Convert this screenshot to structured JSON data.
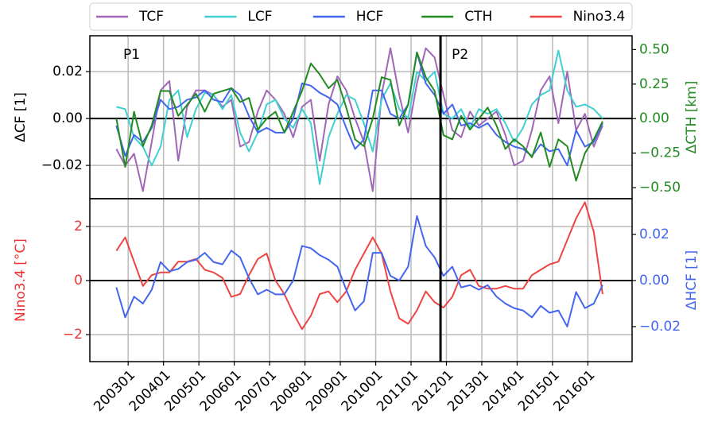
{
  "chart_data": [
    {
      "type": "line",
      "ylabel": "ΔCF [1]",
      "y2label": "ΔCTH [km]",
      "ycolor": "#000000",
      "y2color": "#228b22",
      "annotations": [
        "P1",
        "P2"
      ],
      "vline": "201111",
      "grid": true,
      "legend": "top",
      "xlim": [
        "200112",
        "201704"
      ],
      "xticks": [
        "200301",
        "200401",
        "200501",
        "200601",
        "200701",
        "200801",
        "200901",
        "201001",
        "201101",
        "201201",
        "201301",
        "201401",
        "201501",
        "201601"
      ],
      "ylim": [
        -0.0342,
        0.0353
      ],
      "yticks": [
        {
          "value": -0.02,
          "label": "−0.02"
        },
        {
          "value": 0,
          "label": "0.00"
        },
        {
          "value": 0.02,
          "label": "0.02"
        }
      ],
      "y2lim": [
        -0.58,
        0.6
      ],
      "y2ticks": [
        {
          "value": -0.5,
          "label": "−0.50"
        },
        {
          "value": -0.25,
          "label": "−0.25"
        },
        {
          "value": 0,
          "label": "0.00"
        },
        {
          "value": 0.25,
          "label": "0.25"
        },
        {
          "value": 0.5,
          "label": "0.50"
        }
      ],
      "x": [
        "200209",
        "200212",
        "200303",
        "200306",
        "200309",
        "200312",
        "200403",
        "200406",
        "200409",
        "200412",
        "200503",
        "200506",
        "200509",
        "200512",
        "200603",
        "200606",
        "200609",
        "200612",
        "200703",
        "200706",
        "200709",
        "200712",
        "200803",
        "200806",
        "200809",
        "200812",
        "200903",
        "200906",
        "200909",
        "200912",
        "201003",
        "201006",
        "201009",
        "201012",
        "201103",
        "201106",
        "201109",
        "201112",
        "201203",
        "201206",
        "201209",
        "201212",
        "201303",
        "201306",
        "201309",
        "201312",
        "201403",
        "201406",
        "201409",
        "201412",
        "201503",
        "201506",
        "201509",
        "201512",
        "201603",
        "201606"
      ],
      "series": [
        {
          "name": "TCF",
          "color": "#a066b8",
          "values": [
            -0.013,
            -0.02,
            -0.015,
            -0.031,
            -0.01,
            0.012,
            0.016,
            -0.018,
            0.005,
            0.012,
            0.012,
            0.01,
            0.005,
            0.008,
            -0.012,
            -0.01,
            0.003,
            0.012,
            0.008,
            0.002,
            -0.008,
            0.005,
            0.008,
            -0.018,
            0.006,
            0.018,
            0.012,
            0.0,
            -0.01,
            -0.031,
            0.01,
            0.03,
            0.01,
            -0.006,
            0.015,
            0.03,
            0.026,
            0.01,
            -0.005,
            -0.008,
            0.003,
            -0.003,
            0.0,
            0.003,
            -0.007,
            -0.02,
            -0.018,
            -0.005,
            0.012,
            0.018,
            -0.002,
            0.02,
            -0.005,
            0.002,
            -0.012,
            -0.003
          ]
        },
        {
          "name": "LCF",
          "color": "#40d0d0",
          "values": [
            0.005,
            0.004,
            -0.008,
            -0.012,
            -0.02,
            -0.012,
            0.008,
            0.012,
            -0.008,
            0.004,
            0.011,
            0.01,
            0.004,
            0.01,
            -0.006,
            -0.014,
            -0.006,
            0.006,
            0.008,
            0.0,
            -0.004,
            0.004,
            -0.002,
            -0.028,
            -0.008,
            0.002,
            0.01,
            0.008,
            -0.002,
            -0.014,
            0.008,
            0.015,
            0.004,
            0.0,
            0.02,
            0.016,
            0.02,
            0.002,
            0.0,
            0.004,
            -0.004,
            0.004,
            0.002,
            0.004,
            -0.002,
            -0.01,
            -0.004,
            0.006,
            0.01,
            0.012,
            0.029,
            0.012,
            0.005,
            0.006,
            0.004,
            0.0
          ]
        },
        {
          "name": "HCF",
          "color": "#4466ee",
          "values": [
            -0.003,
            -0.016,
            -0.007,
            -0.01,
            -0.004,
            0.008,
            0.004,
            0.005,
            0.008,
            0.009,
            0.012,
            0.008,
            0.007,
            0.013,
            0.01,
            0.001,
            -0.006,
            -0.004,
            -0.006,
            -0.006,
            0.0,
            0.015,
            0.014,
            0.011,
            0.009,
            0.006,
            -0.004,
            -0.013,
            -0.009,
            0.012,
            0.012,
            0.002,
            0.0,
            0.006,
            0.028,
            0.015,
            0.01,
            0.002,
            0.006,
            -0.003,
            -0.002,
            -0.004,
            -0.002,
            -0.007,
            -0.01,
            -0.012,
            -0.013,
            -0.016,
            -0.011,
            -0.014,
            -0.013,
            -0.02,
            -0.005,
            -0.012,
            -0.01,
            -0.002
          ]
        },
        {
          "name": "CTH",
          "color": "#228b22",
          "axis": "y2",
          "values": [
            0.0,
            -0.35,
            0.05,
            -0.2,
            -0.05,
            0.2,
            0.2,
            0.02,
            0.1,
            0.18,
            0.05,
            0.18,
            0.2,
            0.22,
            0.12,
            0.15,
            -0.08,
            0.0,
            0.05,
            -0.1,
            0.05,
            0.2,
            0.4,
            0.32,
            0.22,
            0.28,
            0.08,
            -0.15,
            -0.2,
            0.0,
            0.3,
            0.28,
            -0.05,
            0.1,
            0.48,
            0.3,
            0.2,
            -0.12,
            -0.15,
            0.02,
            -0.08,
            0.0,
            0.08,
            -0.05,
            -0.22,
            -0.15,
            -0.2,
            -0.28,
            -0.1,
            -0.35,
            -0.15,
            -0.2,
            -0.45,
            -0.25,
            -0.15,
            -0.02
          ]
        }
      ]
    },
    {
      "type": "line",
      "ylabel": "Nino3.4 [°C]",
      "y2label": "ΔHCF [1]",
      "ycolor": "#ee3333",
      "y2color": "#4466ee",
      "vline": "201111",
      "grid": true,
      "xlim": [
        "200112",
        "201704"
      ],
      "xticks": [
        "200301",
        "200401",
        "200501",
        "200601",
        "200701",
        "200801",
        "200901",
        "201001",
        "201101",
        "201201",
        "201301",
        "201401",
        "201501",
        "201601"
      ],
      "ylim": [
        -3,
        3.03
      ],
      "yticks": [
        {
          "value": -2,
          "label": "−2"
        },
        0,
        2
      ],
      "y2lim": [
        -0.0352,
        0.0355
      ],
      "y2ticks": [
        {
          "value": -0.02,
          "label": "−0.02"
        },
        {
          "value": 0,
          "label": "0.00"
        },
        {
          "value": 0.02,
          "label": "0.02"
        }
      ],
      "x": [
        "200209",
        "200212",
        "200303",
        "200306",
        "200309",
        "200312",
        "200403",
        "200406",
        "200409",
        "200412",
        "200503",
        "200506",
        "200509",
        "200512",
        "200603",
        "200606",
        "200609",
        "200612",
        "200703",
        "200706",
        "200709",
        "200712",
        "200803",
        "200806",
        "200809",
        "200812",
        "200903",
        "200906",
        "200909",
        "200912",
        "201003",
        "201006",
        "201009",
        "201012",
        "201103",
        "201106",
        "201109",
        "201112",
        "201203",
        "201206",
        "201209",
        "201212",
        "201303",
        "201306",
        "201309",
        "201312",
        "201403",
        "201406",
        "201409",
        "201412",
        "201503",
        "201506",
        "201509",
        "201512",
        "201603",
        "201606"
      ],
      "series": [
        {
          "name": "Nino3.4",
          "color": "#ee4444",
          "values": [
            1.1,
            1.6,
            0.7,
            -0.2,
            0.2,
            0.3,
            0.3,
            0.7,
            0.7,
            0.8,
            0.4,
            0.3,
            0.1,
            -0.6,
            -0.5,
            0.2,
            0.8,
            1.0,
            0.0,
            -0.5,
            -1.2,
            -1.8,
            -1.3,
            -0.5,
            -0.4,
            -0.8,
            -0.4,
            0.4,
            1.0,
            1.6,
            1.0,
            -0.4,
            -1.4,
            -1.6,
            -1.1,
            -0.4,
            -0.8,
            -1.0,
            -0.6,
            0.2,
            0.4,
            -0.2,
            -0.3,
            -0.3,
            -0.2,
            -0.3,
            -0.3,
            0.2,
            0.4,
            0.6,
            0.7,
            1.5,
            2.3,
            2.9,
            1.8,
            -0.5
          ]
        },
        {
          "color": "#4466ee",
          "axis": "y2",
          "values": [
            -0.003,
            -0.016,
            -0.007,
            -0.01,
            -0.004,
            0.008,
            0.004,
            0.005,
            0.008,
            0.009,
            0.012,
            0.008,
            0.007,
            0.013,
            0.01,
            0.001,
            -0.006,
            -0.004,
            -0.006,
            -0.006,
            0.0,
            0.015,
            0.014,
            0.011,
            0.009,
            0.006,
            -0.004,
            -0.013,
            -0.009,
            0.012,
            0.012,
            0.002,
            0.0,
            0.006,
            0.028,
            0.015,
            0.01,
            0.002,
            0.006,
            -0.003,
            -0.002,
            -0.004,
            -0.002,
            -0.007,
            -0.01,
            -0.012,
            -0.013,
            -0.016,
            -0.011,
            -0.014,
            -0.013,
            -0.02,
            -0.005,
            -0.012,
            -0.01,
            -0.002
          ]
        }
      ]
    }
  ]
}
